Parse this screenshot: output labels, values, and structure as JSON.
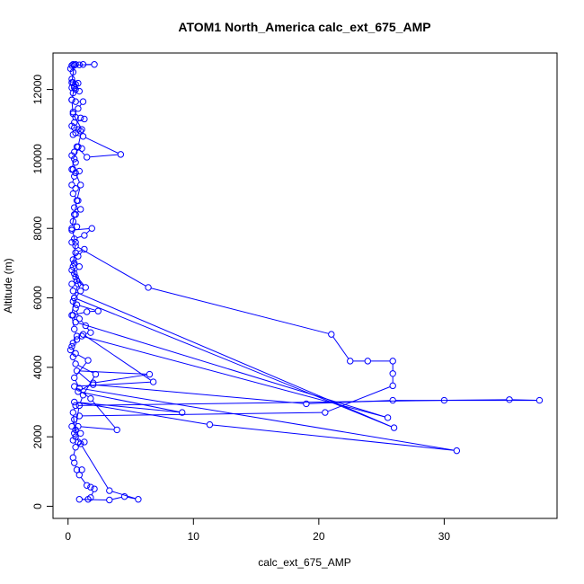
{
  "chart_data": {
    "type": "line",
    "title": "ATOM1 North_America calc_ext_675_AMP",
    "xlabel": "calc_ext_675_AMP",
    "ylabel": "Altitude (m)",
    "xlim": [
      -1.2,
      39.0
    ],
    "ylim": [
      -350,
      13050
    ],
    "xticks": [
      0,
      10,
      20,
      30
    ],
    "yticks": [
      0,
      2000,
      4000,
      6000,
      8000,
      10000,
      12000
    ],
    "grid": false,
    "legend": "none",
    "marker": "open-circle",
    "color": "#0000ff",
    "series": [
      {
        "name": "",
        "points": [
          [
            0.4,
            12720
          ],
          [
            0.6,
            12720
          ],
          [
            0.9,
            12710
          ],
          [
            1.2,
            12720
          ],
          [
            2.1,
            12720
          ],
          [
            0.5,
            12700
          ],
          [
            0.3,
            12690
          ],
          [
            0.2,
            12600
          ],
          [
            0.4,
            12500
          ],
          [
            0.3,
            12300
          ],
          [
            0.4,
            12200
          ],
          [
            0.6,
            12150
          ],
          [
            0.8,
            12180
          ],
          [
            0.5,
            12100
          ],
          [
            0.3,
            12050
          ],
          [
            0.6,
            12000
          ],
          [
            0.9,
            11950
          ],
          [
            0.4,
            11900
          ],
          [
            0.3,
            11700
          ],
          [
            0.6,
            11650
          ],
          [
            1.2,
            11650
          ],
          [
            0.8,
            11450
          ],
          [
            0.4,
            11350
          ],
          [
            0.6,
            11200
          ],
          [
            1.0,
            11180
          ],
          [
            1.3,
            11150
          ],
          [
            0.5,
            11050
          ],
          [
            0.3,
            10950
          ],
          [
            0.5,
            10900
          ],
          [
            0.8,
            10850
          ],
          [
            1.0,
            10800
          ],
          [
            0.6,
            10750
          ],
          [
            0.4,
            10700
          ],
          [
            1.2,
            10650
          ],
          [
            4.2,
            10130
          ],
          [
            1.5,
            10050
          ],
          [
            0.7,
            10350
          ],
          [
            1.1,
            10300
          ],
          [
            0.5,
            10200
          ],
          [
            0.3,
            10100
          ],
          [
            0.6,
            9900
          ],
          [
            0.4,
            9700
          ],
          [
            0.9,
            9650
          ],
          [
            0.5,
            9500
          ],
          [
            0.3,
            9250
          ],
          [
            0.6,
            9150
          ],
          [
            0.4,
            9000
          ],
          [
            0.8,
            8800
          ],
          [
            0.5,
            8600
          ],
          [
            1.0,
            8550
          ],
          [
            0.6,
            8400
          ],
          [
            0.4,
            8200
          ],
          [
            0.7,
            8050
          ],
          [
            0.3,
            7950
          ],
          [
            1.9,
            8000
          ],
          [
            1.3,
            7800
          ],
          [
            0.5,
            7700
          ],
          [
            0.3,
            7600
          ],
          [
            0.6,
            7500
          ],
          [
            6.4,
            6300
          ],
          [
            21.0,
            4950
          ],
          [
            22.5,
            4180
          ],
          [
            23.9,
            4180
          ],
          [
            25.9,
            4180
          ],
          [
            25.9,
            3820
          ],
          [
            25.9,
            3470
          ],
          [
            20.5,
            2700
          ],
          [
            0.9,
            2600
          ],
          [
            0.5,
            2500
          ],
          [
            0.3,
            2300
          ],
          [
            0.6,
            2200
          ],
          [
            1.0,
            2100
          ],
          [
            0.4,
            1900
          ],
          [
            0.8,
            1850
          ],
          [
            1.3,
            1850
          ],
          [
            0.6,
            1700
          ],
          [
            0.4,
            1400
          ],
          [
            0.5,
            1250
          ],
          [
            0.7,
            1050
          ],
          [
            1.1,
            1050
          ],
          [
            0.9,
            900
          ],
          [
            1.5,
            600
          ],
          [
            1.8,
            550
          ],
          [
            2.1,
            500
          ],
          [
            1.8,
            250
          ],
          [
            1.6,
            200
          ],
          [
            0.9,
            200
          ],
          [
            3.3,
            180
          ],
          [
            4.5,
            280
          ],
          [
            5.6,
            200
          ],
          [
            3.3,
            450
          ],
          [
            1.0,
            1800
          ],
          [
            0.6,
            2000
          ],
          [
            0.4,
            2700
          ],
          [
            0.6,
            2900
          ],
          [
            30.0,
            3050
          ],
          [
            35.2,
            3070
          ],
          [
            37.6,
            3050
          ],
          [
            25.9,
            3050
          ],
          [
            19.0,
            2950
          ],
          [
            2.0,
            3500
          ],
          [
            0.7,
            3900
          ],
          [
            6.5,
            3800
          ],
          [
            2.0,
            3550
          ],
          [
            0.8,
            3300
          ],
          [
            9.1,
            2700
          ],
          [
            0.5,
            3000
          ],
          [
            11.3,
            2350
          ],
          [
            31.0,
            1600
          ],
          [
            0.9,
            3400
          ],
          [
            0.5,
            3700
          ],
          [
            1.6,
            4200
          ],
          [
            0.6,
            4400
          ],
          [
            0.3,
            4600
          ],
          [
            0.7,
            4800
          ],
          [
            1.1,
            4900
          ],
          [
            25.5,
            2550
          ],
          [
            0.6,
            5300
          ],
          [
            0.4,
            5500
          ],
          [
            1.5,
            5600
          ],
          [
            2.4,
            5620
          ],
          [
            0.7,
            5800
          ],
          [
            0.5,
            6000
          ],
          [
            26.0,
            2260
          ],
          [
            0.4,
            6200
          ],
          [
            0.3,
            6400
          ],
          [
            0.7,
            6500
          ],
          [
            1.4,
            6300
          ],
          [
            0.5,
            6700
          ],
          [
            0.9,
            6900
          ],
          [
            0.4,
            7100
          ],
          [
            0.6,
            7300
          ],
          [
            1.3,
            7400
          ],
          [
            0.8,
            7200
          ],
          [
            0.5,
            7000
          ],
          [
            0.3,
            6800
          ],
          [
            0.6,
            6600
          ],
          [
            1.0,
            6200
          ],
          [
            0.4,
            5900
          ],
          [
            0.6,
            5700
          ],
          [
            0.9,
            5400
          ],
          [
            1.4,
            5200
          ],
          [
            1.8,
            5000
          ],
          [
            1.2,
            4950
          ],
          [
            6.8,
            3580
          ],
          [
            0.5,
            3450
          ],
          [
            1.8,
            3100
          ],
          [
            3.9,
            2200
          ],
          [
            0.8,
            2300
          ],
          [
            0.5,
            2100
          ],
          [
            0.9,
            2900
          ],
          [
            1.2,
            3200
          ],
          [
            2.2,
            3800
          ],
          [
            0.6,
            4100
          ],
          [
            0.4,
            4300
          ],
          [
            0.2,
            4500
          ],
          [
            0.4,
            4700
          ],
          [
            0.7,
            4900
          ],
          [
            0.5,
            5100
          ],
          [
            0.3,
            5500
          ],
          [
            0.5,
            6000
          ],
          [
            0.8,
            6400
          ],
          [
            0.4,
            6900
          ],
          [
            0.6,
            7600
          ],
          [
            0.3,
            8000
          ],
          [
            0.5,
            8400
          ],
          [
            0.7,
            8800
          ],
          [
            1.0,
            9250
          ],
          [
            0.6,
            9600
          ],
          [
            0.3,
            9700
          ],
          [
            0.5,
            10000
          ],
          [
            0.8,
            10350
          ],
          [
            1.1,
            10850
          ],
          [
            0.4,
            11300
          ],
          [
            0.3,
            11700
          ],
          [
            0.5,
            12050
          ],
          [
            0.3,
            12200
          ],
          [
            0.5,
            12700
          ]
        ]
      }
    ]
  }
}
